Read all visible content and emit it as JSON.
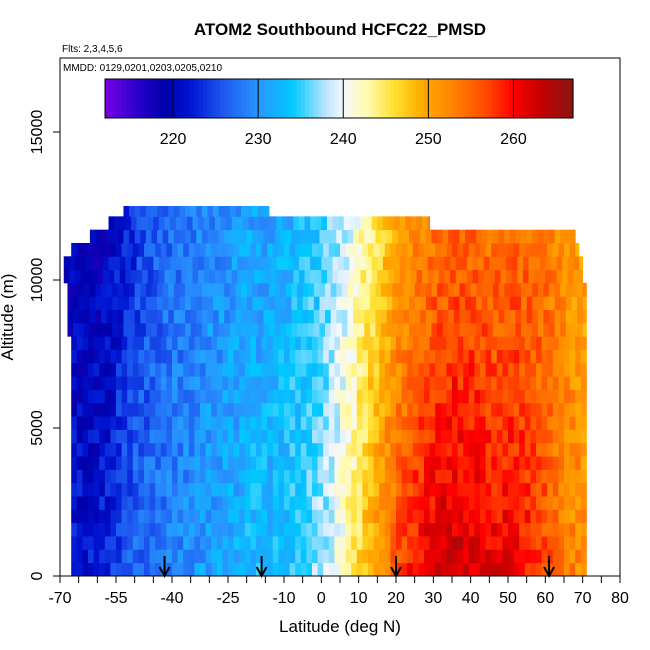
{
  "chart_data": {
    "type": "heatmap",
    "title": "ATOM2 Southbound HCFC22_PMSD",
    "subtitle_flights": "Flts: 2,3,4,5,6",
    "subtitle_dates": "MMDD: 0129,0201,0203,0205,0210",
    "xlabel": "Latitude (deg N)",
    "ylabel": "Altitude (m)",
    "xlim": [
      -70,
      80
    ],
    "ylim": [
      0,
      17500
    ],
    "x_tick_labels": [
      "-70",
      "-55",
      "-40",
      "-25",
      "-10",
      "0",
      "10",
      "20",
      "30",
      "40",
      "50",
      "60",
      "70",
      "80"
    ],
    "x_tick_values": [
      -70,
      -55,
      -40,
      -25,
      -10,
      0,
      10,
      20,
      30,
      40,
      50,
      60,
      70,
      80
    ],
    "x_minor_ticks": [
      -65,
      -60,
      -50,
      -45,
      -35,
      -30,
      -20,
      -15,
      -5,
      5,
      15,
      25,
      35,
      45,
      55,
      65,
      75
    ],
    "y_tick_labels": [
      "0",
      "5000",
      "10000",
      "15000"
    ],
    "y_tick_values": [
      0,
      5000,
      10000,
      15000
    ],
    "colorbar": {
      "range": [
        212,
        267
      ],
      "tick_labels": [
        "220",
        "230",
        "240",
        "250",
        "260"
      ],
      "tick_values": [
        220,
        230,
        240,
        250,
        260
      ]
    },
    "data_extent": {
      "lat_min": -67,
      "lat_max": 71,
      "alt_min": 0,
      "alt_max": 12500
    },
    "column_profiles": {
      "lat": [
        -67,
        -60,
        -55,
        -50,
        -45,
        -40,
        -35,
        -30,
        -25,
        -20,
        -15,
        -10,
        -5,
        0,
        5,
        10,
        15,
        20,
        25,
        30,
        35,
        40,
        45,
        50,
        55,
        60,
        65,
        70
      ],
      "surface_value": [
        222,
        222,
        225,
        227,
        228,
        229,
        230,
        231,
        232,
        233,
        233,
        234,
        236,
        238,
        242,
        247,
        252,
        257,
        260,
        262,
        263,
        262,
        261,
        261,
        259,
        256,
        253,
        252
      ],
      "top_value": [
        219,
        219,
        221,
        224,
        226,
        227,
        228,
        229,
        230,
        231,
        231,
        232,
        233,
        235,
        238,
        242,
        246,
        249,
        252,
        253,
        254,
        254,
        253,
        254,
        254,
        253,
        251,
        250
      ]
    },
    "arrows_lat": [
      -42,
      -16,
      20,
      61
    ]
  }
}
